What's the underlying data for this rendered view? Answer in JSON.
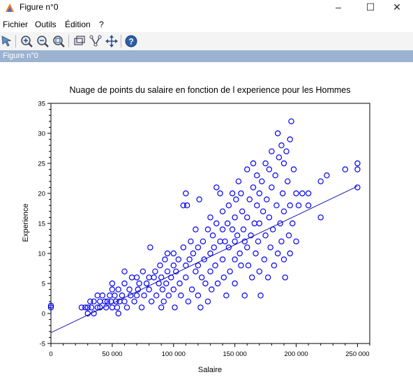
{
  "window": {
    "title": "Figure n°0",
    "minimize": "–",
    "maximize": "☐",
    "close": "✕"
  },
  "menu": [
    "Fichier",
    "Outils",
    "Édition",
    "?"
  ],
  "toolbar": {
    "icons": [
      "select-arrow-icon",
      "zoom-in-icon",
      "zoom-out-icon",
      "zoom-fit-icon",
      "rotate-icon",
      "datatip-icon",
      "pan-icon",
      "help-icon"
    ]
  },
  "figure_label": "Figure n°0",
  "chart_data": {
    "type": "scatter",
    "title": "Nuage de points du salaire en fonction de l experience pour les Hommes",
    "xlabel": "Salaire",
    "ylabel": "Experience",
    "xlim": [
      0,
      260000
    ],
    "ylim": [
      -5,
      35
    ],
    "xticks": [
      "0",
      "50 000",
      "100 000",
      "150 000",
      "200 000",
      "250 000"
    ],
    "yticks": [
      "-5",
      "0",
      "5",
      "10",
      "15",
      "20",
      "25",
      "30",
      "35"
    ],
    "grid": false,
    "marker_color": "#0000ee",
    "regression_line": [
      [
        0,
        -3.2
      ],
      [
        250000,
        21.2
      ]
    ],
    "points": [
      [
        0,
        1
      ],
      [
        0,
        1.3
      ],
      [
        25000,
        1
      ],
      [
        28000,
        1
      ],
      [
        30000,
        0
      ],
      [
        30000,
        1
      ],
      [
        32000,
        2
      ],
      [
        33000,
        1
      ],
      [
        35000,
        0
      ],
      [
        35000,
        2
      ],
      [
        38000,
        1
      ],
      [
        38000,
        3
      ],
      [
        40000,
        2
      ],
      [
        40000,
        1
      ],
      [
        42000,
        3
      ],
      [
        44000,
        2
      ],
      [
        45000,
        1
      ],
      [
        46000,
        2
      ],
      [
        48000,
        3
      ],
      [
        49000,
        2
      ],
      [
        50000,
        1
      ],
      [
        50000,
        4
      ],
      [
        50000,
        5
      ],
      [
        52000,
        3
      ],
      [
        53000,
        2
      ],
      [
        54000,
        1
      ],
      [
        55000,
        0
      ],
      [
        55000,
        4
      ],
      [
        56000,
        2
      ],
      [
        58000,
        3
      ],
      [
        60000,
        5
      ],
      [
        60000,
        2
      ],
      [
        60000,
        7
      ],
      [
        62000,
        1
      ],
      [
        64000,
        4
      ],
      [
        65000,
        3
      ],
      [
        66000,
        6
      ],
      [
        68000,
        2
      ],
      [
        70000,
        3
      ],
      [
        70000,
        6
      ],
      [
        71000,
        4
      ],
      [
        72000,
        5
      ],
      [
        74000,
        1
      ],
      [
        75000,
        7
      ],
      [
        76000,
        3
      ],
      [
        78000,
        5
      ],
      [
        80000,
        4
      ],
      [
        80000,
        6
      ],
      [
        81000,
        11
      ],
      [
        82000,
        2
      ],
      [
        84000,
        6
      ],
      [
        85000,
        7
      ],
      [
        86000,
        3
      ],
      [
        88000,
        5
      ],
      [
        89000,
        8
      ],
      [
        90000,
        1
      ],
      [
        90000,
        6
      ],
      [
        91000,
        4
      ],
      [
        92000,
        2
      ],
      [
        93000,
        9
      ],
      [
        94000,
        5
      ],
      [
        95000,
        10
      ],
      [
        95000,
        7
      ],
      [
        96000,
        3
      ],
      [
        98000,
        6
      ],
      [
        100000,
        8
      ],
      [
        100000,
        4
      ],
      [
        100000,
        10
      ],
      [
        101000,
        1
      ],
      [
        102000,
        7
      ],
      [
        104000,
        9
      ],
      [
        105000,
        5
      ],
      [
        106000,
        3
      ],
      [
        108000,
        11
      ],
      [
        108000,
        18
      ],
      [
        110000,
        8
      ],
      [
        110000,
        20
      ],
      [
        110000,
        6
      ],
      [
        111000,
        18
      ],
      [
        112000,
        2
      ],
      [
        113000,
        9
      ],
      [
        114000,
        12
      ],
      [
        115000,
        4
      ],
      [
        116000,
        10
      ],
      [
        118000,
        7
      ],
      [
        118000,
        14
      ],
      [
        120000,
        11
      ],
      [
        120000,
        3
      ],
      [
        120000,
        8
      ],
      [
        121000,
        19
      ],
      [
        122000,
        1
      ],
      [
        123000,
        6
      ],
      [
        124000,
        12
      ],
      [
        125000,
        9
      ],
      [
        126000,
        5
      ],
      [
        128000,
        14
      ],
      [
        128000,
        2
      ],
      [
        130000,
        16
      ],
      [
        130000,
        10
      ],
      [
        130000,
        7
      ],
      [
        131000,
        4
      ],
      [
        132000,
        13
      ],
      [
        133000,
        11
      ],
      [
        134000,
        8
      ],
      [
        135000,
        15
      ],
      [
        135000,
        21
      ],
      [
        136000,
        5
      ],
      [
        138000,
        12
      ],
      [
        138000,
        20
      ],
      [
        140000,
        14
      ],
      [
        140000,
        9
      ],
      [
        140000,
        17
      ],
      [
        141000,
        6
      ],
      [
        142000,
        12
      ],
      [
        143000,
        3
      ],
      [
        144000,
        15
      ],
      [
        145000,
        11
      ],
      [
        145000,
        18
      ],
      [
        146000,
        7
      ],
      [
        148000,
        14
      ],
      [
        148000,
        20
      ],
      [
        150000,
        12
      ],
      [
        150000,
        9
      ],
      [
        150000,
        16
      ],
      [
        150000,
        5
      ],
      [
        151000,
        19
      ],
      [
        152000,
        13
      ],
      [
        153000,
        22
      ],
      [
        154000,
        10
      ],
      [
        155000,
        8
      ],
      [
        155000,
        20
      ],
      [
        156000,
        17
      ],
      [
        157000,
        14
      ],
      [
        158000,
        3
      ],
      [
        158000,
        12
      ],
      [
        160000,
        24
      ],
      [
        160000,
        16
      ],
      [
        160000,
        11
      ],
      [
        161000,
        8
      ],
      [
        162000,
        19
      ],
      [
        163000,
        13
      ],
      [
        164000,
        6
      ],
      [
        165000,
        21
      ],
      [
        165000,
        25
      ],
      [
        166000,
        15
      ],
      [
        167000,
        10
      ],
      [
        168000,
        18
      ],
      [
        168000,
        23
      ],
      [
        169000,
        12
      ],
      [
        170000,
        7
      ],
      [
        170000,
        20
      ],
      [
        170000,
        15
      ],
      [
        171000,
        3
      ],
      [
        172000,
        22
      ],
      [
        173000,
        17
      ],
      [
        174000,
        9
      ],
      [
        175000,
        25
      ],
      [
        175000,
        13
      ],
      [
        176000,
        19
      ],
      [
        177000,
        6
      ],
      [
        178000,
        24
      ],
      [
        178000,
        16
      ],
      [
        179000,
        11
      ],
      [
        180000,
        21
      ],
      [
        180000,
        27
      ],
      [
        181000,
        14
      ],
      [
        182000,
        8
      ],
      [
        183000,
        23
      ],
      [
        184000,
        18
      ],
      [
        185000,
        30
      ],
      [
        185000,
        10
      ],
      [
        186000,
        26
      ],
      [
        187000,
        15
      ],
      [
        188000,
        12
      ],
      [
        188000,
        28
      ],
      [
        189000,
        20
      ],
      [
        190000,
        9
      ],
      [
        190000,
        25
      ],
      [
        190000,
        17
      ],
      [
        191000,
        6
      ],
      [
        192000,
        27
      ],
      [
        193000,
        22
      ],
      [
        194000,
        13
      ],
      [
        195000,
        29
      ],
      [
        195000,
        18
      ],
      [
        195000,
        10
      ],
      [
        196000,
        32
      ],
      [
        197000,
        15
      ],
      [
        198000,
        24
      ],
      [
        200000,
        20
      ],
      [
        200000,
        12
      ],
      [
        202000,
        18
      ],
      [
        205000,
        20
      ],
      [
        210000,
        18
      ],
      [
        210000,
        20
      ],
      [
        220000,
        16
      ],
      [
        220000,
        22
      ],
      [
        225000,
        23
      ],
      [
        240000,
        24
      ],
      [
        250000,
        25
      ],
      [
        250000,
        24
      ],
      [
        250000,
        21
      ]
    ]
  }
}
